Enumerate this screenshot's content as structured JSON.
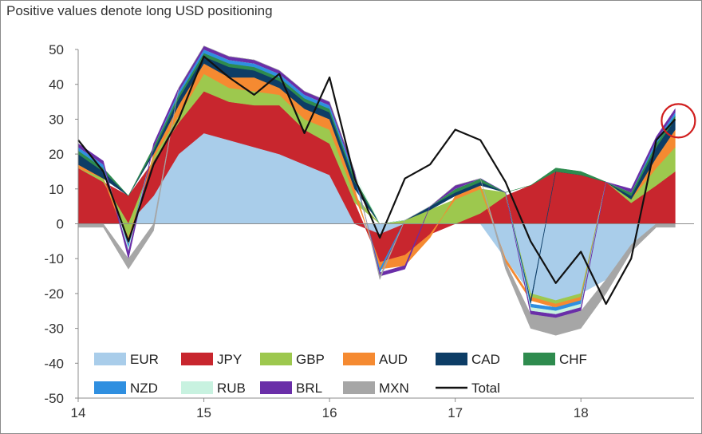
{
  "subtitle": "Positive values denote long USD positioning",
  "chart_data": {
    "type": "area",
    "subtitle": "Positive values denote long USD positioning",
    "x_unit": "year (2014-2018)",
    "x_ticks": [
      "14",
      "15",
      "16",
      "17",
      "18"
    ],
    "x_tick_values": [
      2014,
      2015,
      2016,
      2017,
      2018
    ],
    "xlim": [
      2014.0,
      2018.9
    ],
    "y_ticks": [
      50,
      40,
      30,
      20,
      10,
      0,
      -10,
      -20,
      -30,
      -40,
      -50
    ],
    "ylim": [
      -50,
      50
    ],
    "grid": false,
    "legend_position": "bottom-inside",
    "annotation": "red circle highlighting latest Total value near 30",
    "x": [
      2014.0,
      2014.2,
      2014.4,
      2014.6,
      2014.8,
      2015.0,
      2015.2,
      2015.4,
      2015.6,
      2015.8,
      2016.0,
      2016.2,
      2016.4,
      2016.6,
      2016.8,
      2017.0,
      2017.2,
      2017.4,
      2017.6,
      2017.8,
      2018.0,
      2018.2,
      2018.4,
      2018.6,
      2018.75
    ],
    "series": [
      {
        "name": "EUR",
        "color": "#a9cdea",
        "values": [
          0,
          0,
          0,
          8,
          20,
          26,
          24,
          22,
          20,
          17,
          14,
          0,
          -3,
          0,
          0,
          0,
          0,
          -10,
          -20,
          -22,
          -20,
          -16,
          -6,
          0,
          0
        ]
      },
      {
        "name": "JPY",
        "color": "#c8262e",
        "values": [
          16,
          12,
          8,
          10,
          9,
          12,
          11,
          12,
          14,
          10,
          9,
          6,
          -8,
          -9,
          -3,
          0,
          3,
          8,
          11,
          15,
          14,
          12,
          6,
          11,
          15
        ]
      },
      {
        "name": "GBP",
        "color": "#9dc84e",
        "values": [
          0,
          1,
          -4,
          1,
          2,
          5,
          4,
          4,
          3,
          3,
          4,
          2,
          0,
          1,
          4,
          7,
          7,
          1,
          -1,
          -1,
          -1,
          0,
          1,
          5,
          7
        ]
      },
      {
        "name": "AUD",
        "color": "#f58a31",
        "values": [
          1,
          0,
          -2,
          1,
          3,
          3,
          3,
          4,
          2,
          3,
          3,
          2,
          -2,
          -3,
          -1,
          1,
          1,
          -1,
          -1,
          -1,
          -1,
          0,
          0,
          3,
          5
        ]
      },
      {
        "name": "CAD",
        "color": "#0d3d66",
        "values": [
          3,
          2,
          0,
          1,
          2,
          2,
          3,
          2,
          2,
          2,
          2,
          2,
          0,
          0,
          1,
          1,
          1,
          0,
          -1,
          0,
          0,
          0,
          1,
          3,
          3
        ]
      },
      {
        "name": "CHF",
        "color": "#2e8b4e",
        "values": [
          1,
          1,
          0,
          1,
          1,
          1,
          1,
          1,
          1,
          1,
          1,
          1,
          0,
          0,
          0,
          1,
          1,
          0,
          0,
          1,
          1,
          0,
          1,
          1,
          1
        ]
      },
      {
        "name": "NZD",
        "color": "#2f8fe0",
        "values": [
          1,
          1,
          -1,
          0,
          1,
          1,
          1,
          1,
          1,
          1,
          1,
          1,
          -1,
          0,
          0,
          0,
          0,
          0,
          -1,
          -1,
          -1,
          0,
          0,
          1,
          1
        ]
      },
      {
        "name": "RUB",
        "color": "#c8f2e0",
        "values": [
          0,
          0,
          -1,
          0,
          0,
          0,
          0,
          0,
          0,
          0,
          0,
          0,
          0,
          0,
          0,
          0,
          0,
          0,
          -1,
          -1,
          -1,
          0,
          0,
          0,
          0
        ]
      },
      {
        "name": "BRL",
        "color": "#6a2ea8",
        "values": [
          1,
          1,
          -2,
          1,
          1,
          1,
          1,
          1,
          1,
          1,
          1,
          1,
          -1,
          -1,
          0,
          1,
          0,
          0,
          -1,
          -1,
          -1,
          0,
          1,
          1,
          1
        ]
      },
      {
        "name": "MXN",
        "color": "#a6a6a6",
        "values": [
          -1,
          -1,
          -3,
          -2,
          0,
          0,
          0,
          0,
          0,
          0,
          0,
          0,
          -1,
          0,
          0,
          0,
          0,
          -2,
          -4,
          -5,
          -5,
          -4,
          -2,
          -1,
          -1
        ]
      },
      {
        "name": "Total",
        "color": "#111111",
        "type": "line",
        "values": [
          24,
          15,
          -5,
          17,
          30,
          48,
          42,
          37,
          43,
          26,
          42,
          13,
          -4,
          13,
          17,
          27,
          24,
          12,
          -5,
          -17,
          -8,
          -23,
          -10,
          24,
          30
        ]
      }
    ]
  }
}
